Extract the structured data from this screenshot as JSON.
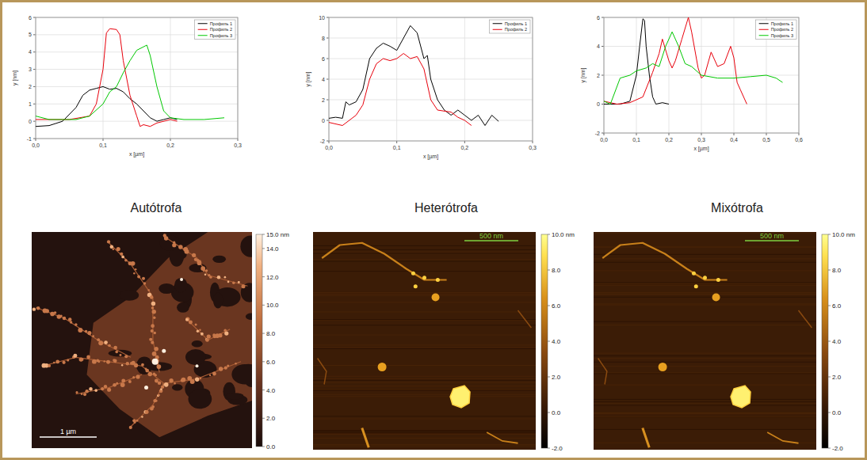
{
  "chart_data": [
    {
      "type": "line",
      "x_label": "x [µm]",
      "y_label": "y [nm]",
      "xlim": [
        0,
        0.3
      ],
      "xticks": [
        {
          "value": 0,
          "label": "0,0"
        },
        {
          "value": 0.1,
          "label": "0,1"
        },
        {
          "value": 0.2,
          "label": "0,2"
        },
        {
          "value": 0.3,
          "label": "0,3"
        }
      ],
      "ylim": [
        -1,
        6
      ],
      "yticks": [
        -1,
        0,
        1,
        2,
        3,
        4,
        5,
        6
      ],
      "grid": true,
      "legend": "upper right",
      "series": [
        {
          "name": "Профиль 1",
          "color": "#000000",
          "x": [
            0,
            0.02,
            0.04,
            0.06,
            0.07,
            0.08,
            0.09,
            0.1,
            0.11,
            0.12,
            0.13,
            0.14,
            0.15,
            0.16,
            0.17,
            0.18,
            0.19,
            0.2,
            0.21
          ],
          "values": [
            -0.3,
            -0.25,
            0,
            0.8,
            1.5,
            1.8,
            1.9,
            2.0,
            1.85,
            1.9,
            1.7,
            1.3,
            1.0,
            0.6,
            0.2,
            0,
            0.1,
            0.2,
            0.1
          ]
        },
        {
          "name": "Профиль 2",
          "color": "#e8000b",
          "x": [
            0,
            0.05,
            0.08,
            0.09,
            0.1,
            0.105,
            0.11,
            0.12,
            0.125,
            0.13,
            0.14,
            0.15,
            0.155,
            0.16,
            0.17,
            0.18,
            0.2,
            0.21
          ],
          "values": [
            0.1,
            0.1,
            0.3,
            1,
            3,
            5.1,
            5.35,
            5.3,
            5.0,
            3.5,
            1.5,
            0.3,
            -0.3,
            -0.2,
            -0.3,
            -0.1,
            0.1,
            0
          ]
        },
        {
          "name": "Профиль 3",
          "color": "#00c800",
          "x": [
            0,
            0.02,
            0.04,
            0.06,
            0.08,
            0.1,
            0.11,
            0.12,
            0.13,
            0.14,
            0.15,
            0.16,
            0.165,
            0.17,
            0.18,
            0.19,
            0.2,
            0.22,
            0.25,
            0.28
          ],
          "values": [
            0.3,
            0.1,
            0.1,
            0.1,
            0.3,
            1.0,
            1.7,
            2.0,
            2.8,
            3.5,
            4.1,
            4.3,
            4.4,
            3.8,
            2.0,
            0.6,
            0.2,
            0.1,
            0.1,
            0.2
          ]
        }
      ]
    },
    {
      "type": "line",
      "x_label": "x [µm]",
      "y_label": "y [nm]",
      "xlim": [
        0,
        0.3
      ],
      "xticks": [
        {
          "value": 0,
          "label": "0,0"
        },
        {
          "value": 0.1,
          "label": "0,1"
        },
        {
          "value": 0.2,
          "label": "0,2"
        },
        {
          "value": 0.3,
          "label": "0,3"
        }
      ],
      "ylim": [
        -2,
        10
      ],
      "yticks": [
        -2,
        0,
        2,
        4,
        6,
        8,
        10
      ],
      "grid": true,
      "legend": "upper right",
      "series": [
        {
          "name": "Профиль 1",
          "color": "#000000",
          "x": [
            0,
            0.01,
            0.02,
            0.025,
            0.03,
            0.04,
            0.05,
            0.06,
            0.07,
            0.08,
            0.09,
            0.1,
            0.11,
            0.12,
            0.13,
            0.14,
            0.145,
            0.15,
            0.16,
            0.17,
            0.18,
            0.19,
            0.2,
            0.21,
            0.22,
            0.23,
            0.24,
            0.25
          ],
          "values": [
            0.2,
            0.3,
            0.2,
            1.8,
            1.5,
            1.8,
            3,
            6,
            7,
            7.5,
            7.2,
            6.8,
            8,
            9.2,
            8.5,
            6,
            6.3,
            4,
            2,
            1,
            0.5,
            1,
            0.5,
            0,
            0.5,
            -0.5,
            0.5,
            -0.1
          ]
        },
        {
          "name": "Профиль 2",
          "color": "#e8000b",
          "x": [
            0,
            0.02,
            0.04,
            0.05,
            0.06,
            0.07,
            0.08,
            0.09,
            0.1,
            0.11,
            0.12,
            0.13,
            0.14,
            0.15,
            0.16,
            0.18,
            0.19,
            0.2,
            0.21
          ],
          "values": [
            -0.2,
            -0.5,
            0.5,
            1.5,
            4,
            5.5,
            6,
            5.8,
            6,
            6.5,
            6,
            6.2,
            5,
            2,
            1,
            0.8,
            0.3,
            0,
            -0.5
          ]
        }
      ]
    },
    {
      "type": "line",
      "x_label": "x [µm]",
      "y_label": "y [nm]",
      "xlim": [
        0,
        0.6
      ],
      "xticks": [
        {
          "value": 0,
          "label": "0,0"
        },
        {
          "value": 0.1,
          "label": "0,1"
        },
        {
          "value": 0.2,
          "label": "0,2"
        },
        {
          "value": 0.3,
          "label": "0,3"
        },
        {
          "value": 0.4,
          "label": "0,4"
        },
        {
          "value": 0.5,
          "label": "0,5"
        },
        {
          "value": 0.6,
          "label": "0,6"
        }
      ],
      "ylim": [
        -2,
        6
      ],
      "yticks": [
        -2,
        0,
        2,
        4,
        6
      ],
      "grid": true,
      "legend": "upper right",
      "series": [
        {
          "name": "Профиль 1",
          "color": "#000000",
          "x": [
            0,
            0.05,
            0.08,
            0.1,
            0.11,
            0.12,
            0.125,
            0.13,
            0.14,
            0.15,
            0.16,
            0.18,
            0.2
          ],
          "values": [
            0,
            0,
            0.2,
            2,
            4,
            5.9,
            5.8,
            4,
            2,
            0.5,
            0,
            0.1,
            0
          ]
        },
        {
          "name": "Профиль 2",
          "color": "#e8000b",
          "x": [
            0,
            0.04,
            0.08,
            0.12,
            0.15,
            0.17,
            0.18,
            0.2,
            0.21,
            0.22,
            0.24,
            0.26,
            0.27,
            0.29,
            0.3,
            0.31,
            0.33,
            0.35,
            0.37,
            0.39,
            0.4,
            0.41,
            0.42,
            0.44
          ],
          "values": [
            0.2,
            0,
            0.1,
            0.5,
            2.2,
            3.5,
            4.5,
            3,
            2.5,
            3,
            4.5,
            6,
            5,
            2.5,
            1.8,
            2,
            3.6,
            2.6,
            2.8,
            4,
            3.2,
            1.5,
            1,
            0
          ]
        },
        {
          "name": "Профиль 3",
          "color": "#00c800",
          "x": [
            0,
            0.02,
            0.05,
            0.08,
            0.1,
            0.13,
            0.15,
            0.17,
            0.19,
            0.21,
            0.23,
            0.25,
            0.27,
            0.29,
            0.3,
            0.35,
            0.4,
            0.45,
            0.5,
            0.53,
            0.55
          ],
          "values": [
            0.2,
            0,
            1.8,
            2,
            2.3,
            2.5,
            2.8,
            2.6,
            4,
            5,
            4,
            2.8,
            2.6,
            2.2,
            2,
            1.8,
            1.8,
            1.9,
            2,
            1.8,
            1.5
          ]
        }
      ]
    }
  ],
  "panels": [
    {
      "label": "Autótrofa",
      "scale_bar": "1 µm",
      "colorbar": {
        "range": [
          0,
          15
        ],
        "ticks": [
          {
            "value": 0,
            "label": "0.0"
          },
          {
            "value": 2,
            "label": "2.0"
          },
          {
            "value": 4,
            "label": "4.0"
          },
          {
            "value": 6,
            "label": "6.0"
          },
          {
            "value": 8,
            "label": "8.0"
          },
          {
            "value": 10,
            "label": "10.0"
          },
          {
            "value": 12,
            "label": "12.0"
          },
          {
            "value": 14,
            "label": "14.0"
          },
          {
            "value": 15,
            "label": "15.0 nm"
          }
        ]
      }
    },
    {
      "label": "Heterótrofa",
      "scale_bar": "500 nm",
      "colorbar": {
        "range": [
          -2,
          10
        ],
        "ticks": [
          {
            "value": -2,
            "label": "-2.0"
          },
          {
            "value": 0,
            "label": "0.0"
          },
          {
            "value": 2,
            "label": "2.0"
          },
          {
            "value": 4,
            "label": "4.0"
          },
          {
            "value": 6,
            "label": "6.0"
          },
          {
            "value": 8,
            "label": "8.0"
          },
          {
            "value": 10,
            "label": "10.0 nm"
          }
        ]
      }
    },
    {
      "label": "Mixótrofa",
      "scale_bar": "500 nm",
      "colorbar": {
        "range": [
          -2,
          10
        ],
        "ticks": [
          {
            "value": -2,
            "label": "-2.0"
          },
          {
            "value": 0,
            "label": "0.0"
          },
          {
            "value": 2,
            "label": "2.0"
          },
          {
            "value": 4,
            "label": "4.0"
          },
          {
            "value": 6,
            "label": "6.0"
          },
          {
            "value": 8,
            "label": "8.0"
          },
          {
            "value": 10,
            "label": "10.0 nm"
          }
        ]
      }
    }
  ]
}
